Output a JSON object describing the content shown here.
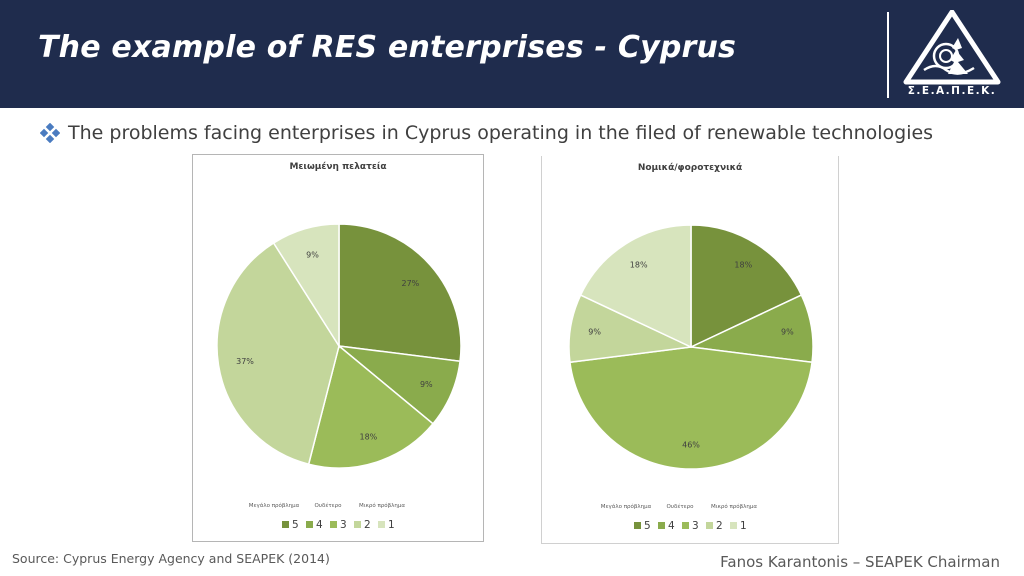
{
  "slide": {
    "title": "The example of RES enterprises - Cyprus",
    "logo_text": "Σ.Ε.Α.Π.Ε.Κ.",
    "bullet": "The problems facing enterprises in Cyprus operating in the filed of renewable technologies",
    "source": "Source: Cyprus Energy Agency and SEAPEK (2014)",
    "author": "Fanos Karantonis – SEAPEK Chairman"
  },
  "colors": {
    "header_bg": "#1f2c4d",
    "bullet": "#4a7bc0"
  },
  "chart_data": [
    {
      "type": "pie",
      "title": "Μειωμένη πελατεία",
      "categories": [
        "5",
        "4",
        "3",
        "2",
        "1"
      ],
      "values": [
        27,
        9,
        18,
        37,
        9
      ],
      "labels": [
        "27%",
        "9%",
        "18%",
        "37%",
        "9%"
      ],
      "colors": [
        "#77923c",
        "#8aab4c",
        "#9bbb59",
        "#c3d69b",
        "#d7e4bd"
      ],
      "scale_labels": [
        "Μεγάλο πρόβλημα",
        "Ουδέτερο",
        "Μικρό πρόβλημα"
      ],
      "legend_position": "bottom"
    },
    {
      "type": "pie",
      "title": "Νομικά/φοροτεχνικά",
      "categories": [
        "5",
        "4",
        "3",
        "2",
        "1"
      ],
      "values": [
        18,
        9,
        46,
        9,
        18
      ],
      "labels": [
        "18%",
        "9%",
        "46%",
        "9%",
        "18%"
      ],
      "colors": [
        "#77923c",
        "#8aab4c",
        "#9bbb59",
        "#c3d69b",
        "#d7e4bd"
      ],
      "scale_labels": [
        "Μεγάλο πρόβλημα",
        "Ουδέτερο",
        "Μικρό πρόβλημα"
      ],
      "legend_position": "bottom"
    }
  ]
}
